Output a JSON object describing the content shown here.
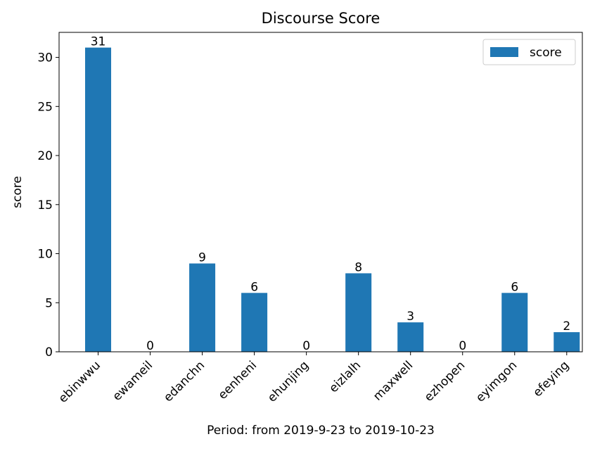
{
  "chart_data": {
    "type": "bar",
    "title": "Discourse Score",
    "xlabel": "Period: from 2019-9-23 to 2019-10-23",
    "ylabel": "score",
    "categories": [
      "ebinwwu",
      "ewameil",
      "edanchn",
      "eenheni",
      "ehunjing",
      "eizlalh",
      "maxwell",
      "ezhopen",
      "eyimgon",
      "efeying"
    ],
    "series": [
      {
        "name": "score",
        "values": [
          31,
          0,
          9,
          6,
          0,
          8,
          3,
          0,
          6,
          2
        ],
        "color": "#1f77b4"
      }
    ],
    "value_labels": [
      "31",
      "0",
      "9",
      "6",
      "0",
      "8",
      "3",
      "0",
      "6",
      "2"
    ],
    "ylim": [
      0,
      32.55
    ],
    "yticks": [
      0,
      5,
      10,
      15,
      20,
      25,
      30
    ],
    "ytick_labels": [
      "0",
      "5",
      "10",
      "15",
      "20",
      "25",
      "30"
    ],
    "grid": false,
    "legend_position": "top-right"
  }
}
